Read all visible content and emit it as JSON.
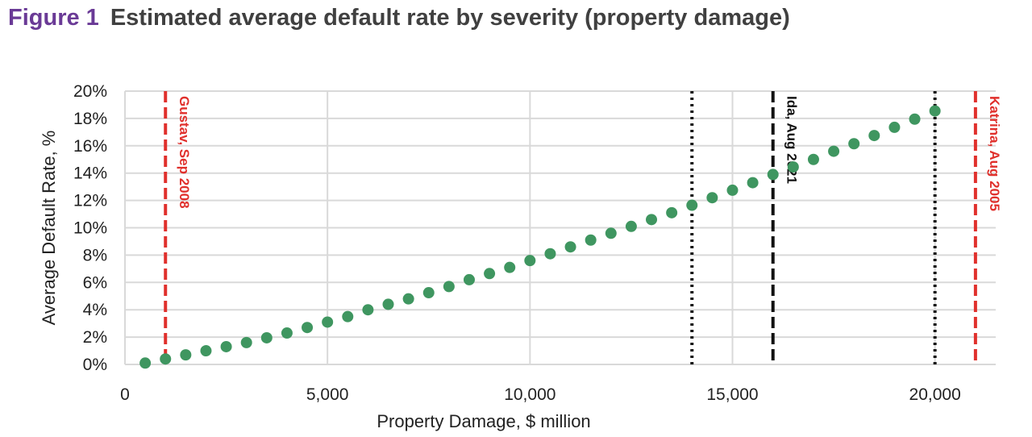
{
  "figure": {
    "label": "Figure 1",
    "title": "Estimated average default rate by severity (property damage)"
  },
  "chart_data": {
    "type": "scatter",
    "xlabel": "Property Damage, $ million",
    "ylabel": "Average Default Rate, %",
    "xlim": [
      0,
      21500
    ],
    "ylim": [
      0,
      20
    ],
    "x_ticks": [
      0,
      5000,
      10000,
      15000,
      20000
    ],
    "x_tick_labels": [
      "0",
      "5,000",
      "10,000",
      "15,000",
      "20,000"
    ],
    "y_ticks": [
      0,
      2,
      4,
      6,
      8,
      10,
      12,
      14,
      16,
      18,
      20
    ],
    "y_tick_labels": [
      "0%",
      "2%",
      "4%",
      "6%",
      "8%",
      "10%",
      "12%",
      "14%",
      "16%",
      "18%",
      "20%"
    ],
    "grid": true,
    "point_color": "#3f9660",
    "series": [
      {
        "x": [
          500,
          1000,
          1500,
          2000,
          2500,
          3000,
          3500,
          4000,
          4500,
          5000,
          5500,
          6000,
          6500,
          7000,
          7500,
          8000,
          8500,
          9000,
          9500,
          10000,
          10500,
          11000,
          11500,
          12000,
          12500,
          13000,
          13500,
          14000,
          14500,
          15000,
          15500,
          16000,
          16500,
          17000,
          17500,
          18000,
          18500,
          19000,
          19500,
          20000
        ],
        "y": [
          0.1,
          0.4,
          0.7,
          1.0,
          1.3,
          1.6,
          1.95,
          2.3,
          2.7,
          3.1,
          3.5,
          4.0,
          4.4,
          4.8,
          5.25,
          5.7,
          6.2,
          6.65,
          7.1,
          7.6,
          8.1,
          8.6,
          9.1,
          9.6,
          10.1,
          10.6,
          11.1,
          11.65,
          12.2,
          12.75,
          13.3,
          13.9,
          14.45,
          15.0,
          15.6,
          16.15,
          16.75,
          17.35,
          17.95,
          18.55
        ]
      }
    ],
    "annotations": [
      {
        "x": 1000,
        "label": "Gustav, Sep 2008",
        "color": "#e0302c",
        "style": "dashed"
      },
      {
        "x": 14000,
        "label": "",
        "color": "#111111",
        "style": "dotted"
      },
      {
        "x": 16000,
        "label": "Ida, Aug 2021",
        "color": "#111111",
        "style": "dashed"
      },
      {
        "x": 20000,
        "label": "",
        "color": "#111111",
        "style": "dotted"
      },
      {
        "x": 21000,
        "label": "Katrina, Aug 2005",
        "color": "#e0302c",
        "style": "dashed"
      }
    ]
  }
}
